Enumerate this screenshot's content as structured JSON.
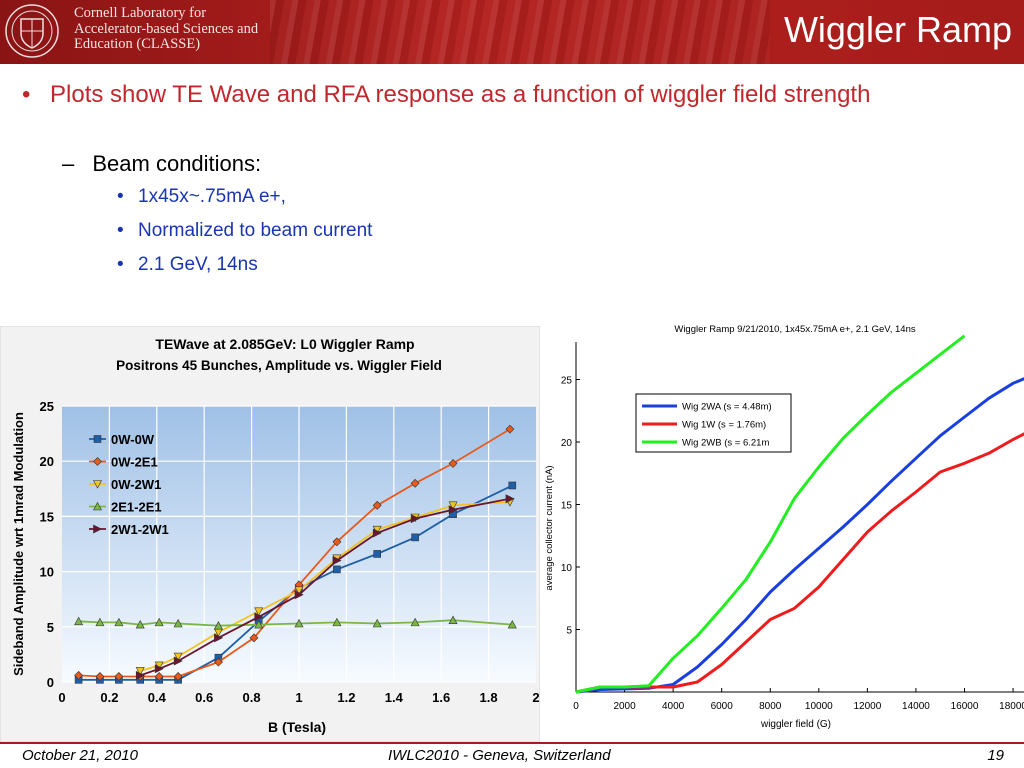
{
  "header": {
    "lab_line1": "Cornell Laboratory for",
    "lab_line2": "Accelerator-based Sciences and",
    "lab_line3": "Education (CLASSE)",
    "title": "Wiggler Ramp",
    "colors": {
      "header_red": "#a51c1a",
      "title_text": "#ffffff"
    },
    "logo_icon": "cornell-seal-icon"
  },
  "bullets": {
    "main": "Plots show TE Wave and RFA response as a function of wiggler field strength",
    "sub": "Beam conditions:",
    "items": [
      "1x45x~.75mA e+,",
      "Normalized to beam current",
      "2.1 GeV, 14ns"
    ],
    "colors": {
      "main": "#c0282d",
      "items": "#1a35b0"
    }
  },
  "footer": {
    "date": "October 21, 2010",
    "venue": "IWLC2010 - Geneva, Switzerland",
    "page": "19"
  },
  "chart_data": [
    {
      "type": "line",
      "title": "TEWave at 2.085GeV: L0 Wiggler Ramp",
      "subtitle": "Positrons 45 Bunches, Amplitude vs. Wiggler Field",
      "xlabel": "B (Tesla)",
      "ylabel": "Sideband Amplitude wrt 1mrad Modulation",
      "xlim": [
        0,
        2
      ],
      "ylim": [
        0,
        25
      ],
      "xticks": [
        0,
        0.2,
        0.4,
        0.6,
        0.8,
        1,
        1.2,
        1.4,
        1.6,
        1.8,
        2
      ],
      "xtick_labels": [
        "0",
        "0.2",
        "0.4",
        "0.6",
        "0.8",
        "1",
        "1.2",
        "1.4",
        "1.6",
        "1.8",
        "2"
      ],
      "yticks": [
        0,
        5,
        10,
        15,
        20,
        25
      ],
      "ytick_labels": [
        "0",
        "5",
        "10",
        "15",
        "20",
        "25"
      ],
      "grid": true,
      "legend": "top-left",
      "series": [
        {
          "name": "0W-0W",
          "color": "#1f5fa8",
          "marker": "square",
          "points": [
            [
              0.07,
              0.2
            ],
            [
              0.16,
              0.2
            ],
            [
              0.24,
              0.2
            ],
            [
              0.33,
              0.2
            ],
            [
              0.41,
              0.2
            ],
            [
              0.49,
              0.2
            ],
            [
              0.66,
              2.2
            ],
            [
              0.83,
              5.5
            ],
            [
              1.0,
              8.5
            ],
            [
              1.16,
              10.2
            ],
            [
              1.33,
              11.6
            ],
            [
              1.49,
              13.1
            ],
            [
              1.65,
              15.2
            ],
            [
              1.9,
              17.8
            ]
          ]
        },
        {
          "name": "0W-2E1",
          "color": "#e85a1c",
          "marker": "diamond",
          "points": [
            [
              0.07,
              0.6
            ],
            [
              0.16,
              0.5
            ],
            [
              0.24,
              0.5
            ],
            [
              0.33,
              0.5
            ],
            [
              0.41,
              0.5
            ],
            [
              0.49,
              0.5
            ],
            [
              0.66,
              1.8
            ],
            [
              0.81,
              4.0
            ],
            [
              1.0,
              8.8
            ],
            [
              1.16,
              12.7
            ],
            [
              1.33,
              16.0
            ],
            [
              1.49,
              18.0
            ],
            [
              1.65,
              19.8
            ],
            [
              1.89,
              22.9
            ]
          ]
        },
        {
          "name": "0W-2W1",
          "color": "#f0c420",
          "marker": "triangle-down",
          "points": [
            [
              0.33,
              1.0
            ],
            [
              0.41,
              1.5
            ],
            [
              0.49,
              2.3
            ],
            [
              0.66,
              4.5
            ],
            [
              0.83,
              6.4
            ],
            [
              1.0,
              8.3
            ],
            [
              1.16,
              11.2
            ],
            [
              1.33,
              13.8
            ],
            [
              1.49,
              14.9
            ],
            [
              1.65,
              16.0
            ],
            [
              1.89,
              16.3
            ]
          ]
        },
        {
          "name": "2E1-2E1",
          "color": "#7ab648",
          "marker": "triangle-up",
          "points": [
            [
              0.07,
              5.5
            ],
            [
              0.16,
              5.4
            ],
            [
              0.24,
              5.4
            ],
            [
              0.33,
              5.2
            ],
            [
              0.41,
              5.4
            ],
            [
              0.49,
              5.3
            ],
            [
              0.66,
              5.1
            ],
            [
              0.83,
              5.2
            ],
            [
              1.0,
              5.3
            ],
            [
              1.16,
              5.4
            ],
            [
              1.33,
              5.3
            ],
            [
              1.49,
              5.4
            ],
            [
              1.65,
              5.6
            ],
            [
              1.9,
              5.2
            ]
          ]
        },
        {
          "name": "2W1-2W1",
          "color": "#6b1631",
          "marker": "tri-right",
          "points": [
            [
              0.33,
              0.6
            ],
            [
              0.41,
              1.2
            ],
            [
              0.49,
              1.9
            ],
            [
              0.66,
              4.0
            ],
            [
              0.83,
              5.9
            ],
            [
              1.0,
              7.9
            ],
            [
              1.16,
              11.0
            ],
            [
              1.33,
              13.5
            ],
            [
              1.49,
              14.8
            ],
            [
              1.65,
              15.6
            ],
            [
              1.89,
              16.6
            ]
          ]
        }
      ]
    },
    {
      "type": "line",
      "title": "Wiggler Ramp 9/21/2010, 1x45x.75mA e+, 2.1 GeV, 14ns",
      "xlabel": "wiggler field (G)",
      "ylabel": "average collector current (nA)",
      "xlim": [
        0,
        18000
      ],
      "ylim": [
        0,
        28
      ],
      "xticks": [
        0,
        2000,
        4000,
        6000,
        8000,
        10000,
        12000,
        14000,
        16000,
        18000
      ],
      "xtick_labels": [
        "0",
        "2000",
        "4000",
        "6000",
        "8000",
        "10000",
        "12000",
        "14000",
        "16000",
        "18000"
      ],
      "yticks": [
        5,
        10,
        15,
        20,
        25
      ],
      "ytick_labels": [
        "5",
        "10",
        "15",
        "20",
        "25"
      ],
      "grid": false,
      "legend": "top-left",
      "series": [
        {
          "name": "Wig 2WA (s = 4.48m)",
          "color": "#1a3fe0",
          "points": [
            [
              0,
              0
            ],
            [
              1000,
              0.2
            ],
            [
              3000,
              0.3
            ],
            [
              4000,
              0.6
            ],
            [
              5000,
              2.0
            ],
            [
              6000,
              3.8
            ],
            [
              7000,
              5.8
            ],
            [
              8000,
              8.0
            ],
            [
              9000,
              9.8
            ],
            [
              10000,
              11.5
            ],
            [
              11000,
              13.2
            ],
            [
              12000,
              15.0
            ],
            [
              13000,
              16.9
            ],
            [
              14000,
              18.7
            ],
            [
              15000,
              20.5
            ],
            [
              16000,
              22.0
            ],
            [
              17000,
              23.5
            ],
            [
              18000,
              24.7
            ],
            [
              18500,
              25.1
            ]
          ]
        },
        {
          "name": "Wig 1W (s = 1.76m)",
          "color": "#ee1c1c",
          "points": [
            [
              0,
              0
            ],
            [
              1000,
              0.4
            ],
            [
              4000,
              0.4
            ],
            [
              5000,
              0.8
            ],
            [
              6000,
              2.2
            ],
            [
              7000,
              4.0
            ],
            [
              8000,
              5.8
            ],
            [
              9000,
              6.7
            ],
            [
              10000,
              8.4
            ],
            [
              11000,
              10.6
            ],
            [
              12000,
              12.8
            ],
            [
              13000,
              14.5
            ],
            [
              14000,
              16.0
            ],
            [
              15000,
              17.6
            ],
            [
              16000,
              18.3
            ],
            [
              17000,
              19.1
            ],
            [
              18000,
              20.2
            ],
            [
              18500,
              20.7
            ]
          ]
        },
        {
          "name": "Wig 2WB (s = 6.21m",
          "color": "#22ee22",
          "points": [
            [
              0,
              0
            ],
            [
              1000,
              0.4
            ],
            [
              2000,
              0.4
            ],
            [
              3000,
              0.5
            ],
            [
              4000,
              2.7
            ],
            [
              5000,
              4.5
            ],
            [
              6000,
              6.7
            ],
            [
              7000,
              9.0
            ],
            [
              8000,
              12.0
            ],
            [
              9000,
              15.5
            ],
            [
              10000,
              18.0
            ],
            [
              11000,
              20.3
            ],
            [
              12000,
              22.2
            ],
            [
              13000,
              24.0
            ],
            [
              14000,
              25.5
            ],
            [
              15000,
              27.0
            ],
            [
              16000,
              28.5
            ]
          ]
        }
      ]
    }
  ]
}
